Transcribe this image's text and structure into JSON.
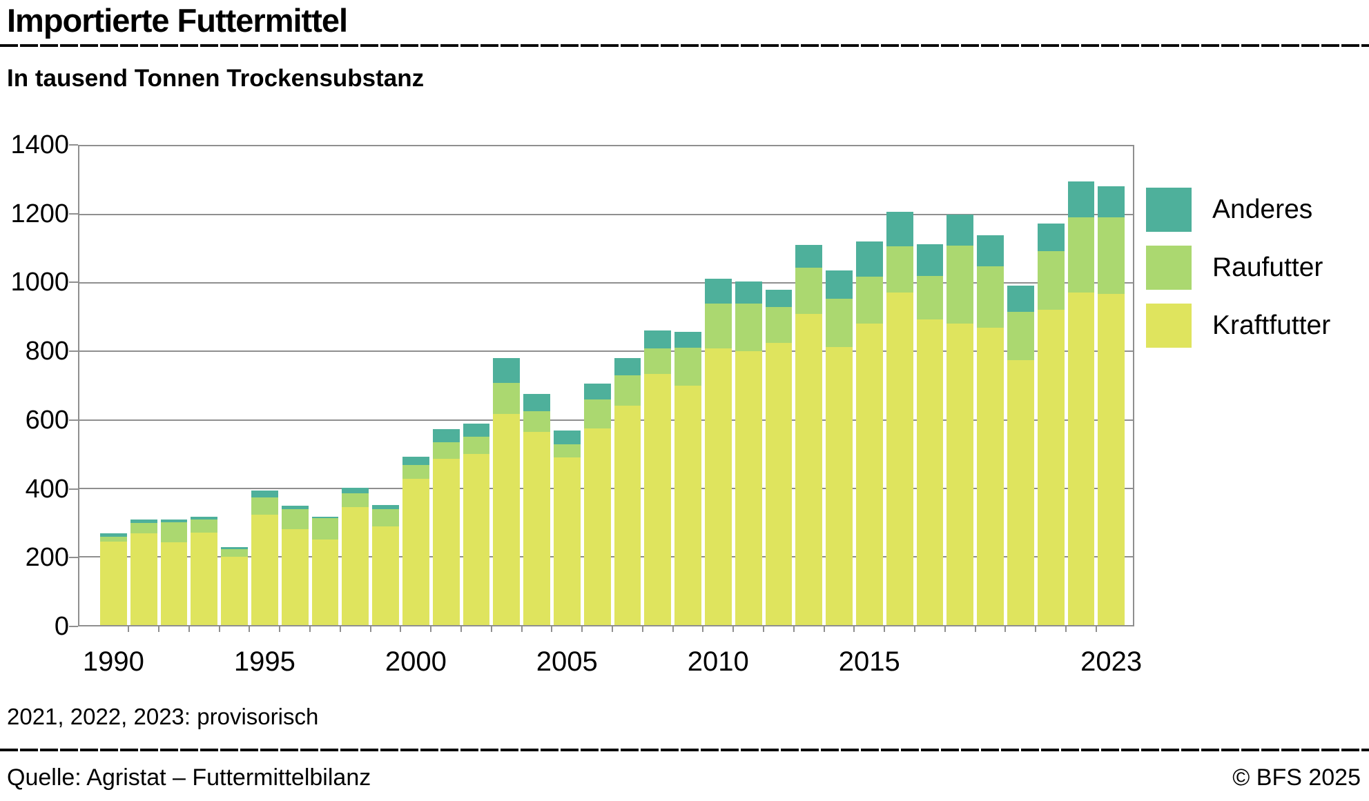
{
  "header": {
    "title": "Importierte Futtermittel",
    "subtitle": "In tausend Tonnen Trockensubstanz"
  },
  "footnote": "2021, 2022, 2023: provisorisch",
  "footer": {
    "source": "Quelle: Agristat – Futtermittelbilanz",
    "copyright": "© BFS 2025"
  },
  "colors": {
    "anderes": "#4EB09B",
    "raufutter": "#ABD870",
    "kraftfutter": "#DFE45E",
    "grid": "#8F8F8F",
    "text": "#000000"
  },
  "legend": [
    {
      "label": "Anderes",
      "color": "#4EB09B"
    },
    {
      "label": "Raufutter",
      "color": "#ABD870"
    },
    {
      "label": "Kraftfutter",
      "color": "#DFE45E"
    }
  ],
  "chart_data": {
    "type": "bar",
    "stacked": true,
    "title": "Importierte Futtermittel",
    "subtitle": "In tausend Tonnen Trockensubstanz",
    "xlabel": "",
    "ylabel": "In tausend Tonnen Trockensubstanz",
    "ylim": [
      0,
      1400
    ],
    "ytick_step": 200,
    "grid": true,
    "legend_position": "right",
    "x_tick_labels": [
      "1990",
      "1995",
      "2000",
      "2005",
      "2010",
      "2015",
      "2023"
    ],
    "categories": [
      1990,
      1991,
      1992,
      1993,
      1994,
      1995,
      1996,
      1997,
      1998,
      1999,
      2000,
      2001,
      2002,
      2003,
      2004,
      2005,
      2006,
      2007,
      2008,
      2009,
      2010,
      2011,
      2012,
      2013,
      2014,
      2015,
      2016,
      2017,
      2018,
      2019,
      2020,
      2021,
      2022,
      2023
    ],
    "series": [
      {
        "name": "Kraftfutter",
        "color": "#DFE45E",
        "values": [
          244,
          269,
          242,
          271,
          199,
          322,
          281,
          250,
          344,
          289,
          427,
          487,
          500,
          617,
          565,
          490,
          575,
          641,
          734,
          701,
          808,
          800,
          826,
          910,
          812,
          881,
          973,
          894,
          882,
          870,
          774,
          921,
          973,
          968
        ]
      },
      {
        "name": "Raufutter",
        "color": "#ABD870",
        "values": [
          15,
          29,
          59,
          38,
          23,
          51,
          58,
          63,
          42,
          49,
          41,
          48,
          50,
          92,
          60,
          39,
          85,
          90,
          75,
          110,
          132,
          141,
          105,
          136,
          142,
          138,
          134,
          127,
          227,
          180,
          142,
          172,
          219,
          224
        ]
      },
      {
        "name": "Anderes",
        "color": "#4EB09B",
        "values": [
          9,
          10,
          7,
          7,
          7,
          20,
          10,
          3,
          16,
          13,
          25,
          37,
          39,
          72,
          50,
          39,
          47,
          49,
          53,
          46,
          72,
          64,
          49,
          65,
          83,
          102,
          101,
          92,
          92,
          90,
          77,
          82,
          106,
          92
        ]
      }
    ]
  }
}
